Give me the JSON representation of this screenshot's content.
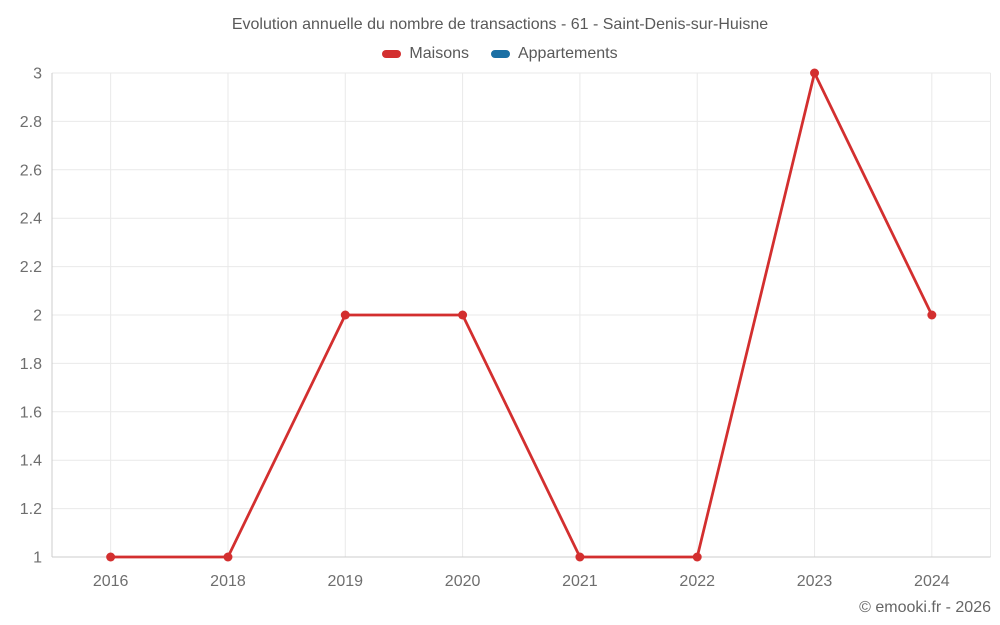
{
  "chart": {
    "title": "Evolution annuelle du nombre de transactions - 61 - Saint-Denis-sur-Huisne",
    "footer": "© emooki.fr - 2026"
  },
  "theme": {
    "grid_color": "#e9e9e9",
    "axis_color": "#cccccc",
    "tick_label_color": "#6e6e6e",
    "title_color": "#595959"
  },
  "chart_data": {
    "type": "line",
    "title": "Evolution annuelle du nombre de transactions - 61 - Saint-Denis-sur-Huisne",
    "categories": [
      "2016",
      "2018",
      "2019",
      "2020",
      "2021",
      "2022",
      "2023",
      "2024"
    ],
    "series": [
      {
        "name": "Maisons",
        "color": "#d32f2f",
        "values": [
          1,
          1,
          2,
          2,
          1,
          1,
          3,
          2
        ]
      },
      {
        "name": "Appartements",
        "color": "#1a6fa4",
        "values": []
      }
    ],
    "xlabel": "",
    "ylabel": "",
    "ylim": [
      1,
      3
    ],
    "yticks": [
      1,
      1.2,
      1.4,
      1.6,
      1.8,
      2,
      2.2,
      2.4,
      2.6,
      2.8,
      3
    ],
    "grid": true,
    "legend_position": "top"
  }
}
